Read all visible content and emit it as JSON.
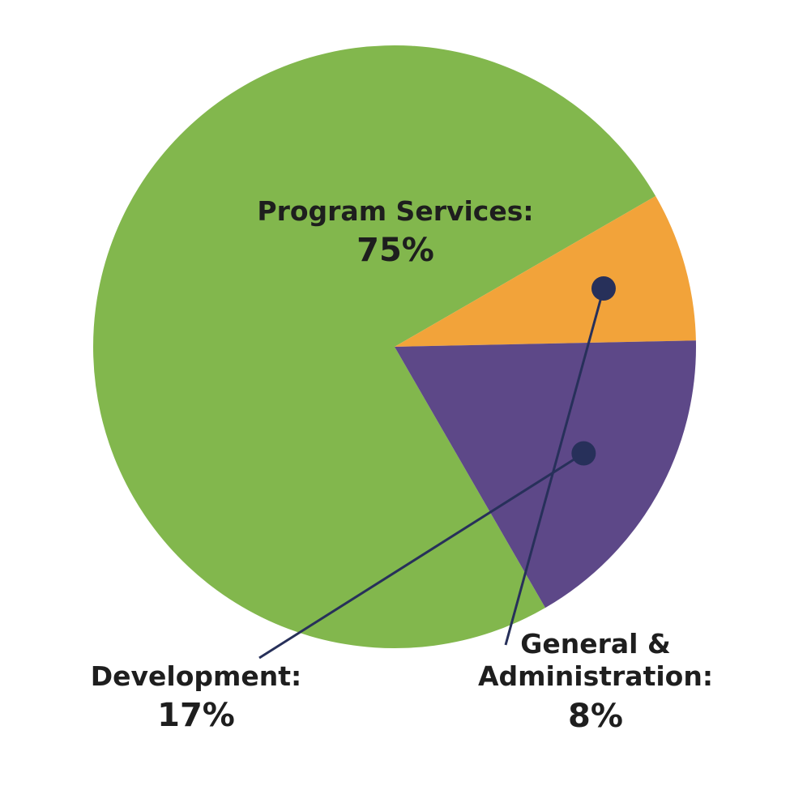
{
  "chart_data": {
    "type": "pie",
    "slices": [
      {
        "label": "Program Services:",
        "value": 75,
        "display_value": "75%",
        "color": "#82b74d"
      },
      {
        "label": "General & Administration:",
        "label_lines": [
          "General &",
          "Administration:"
        ],
        "value": 8,
        "display_value": "8%",
        "color": "#f2a33a"
      },
      {
        "label": "Development:",
        "value": 17,
        "display_value": "17%",
        "color": "#5d4888"
      }
    ],
    "leader_color": "#27305a"
  }
}
